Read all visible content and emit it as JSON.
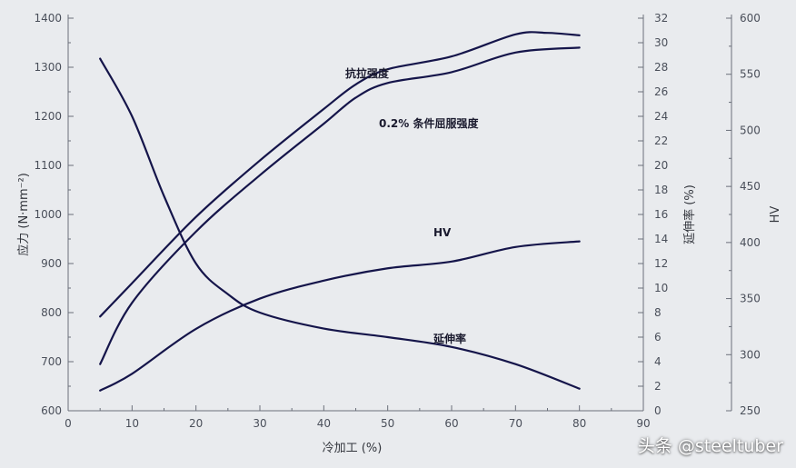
{
  "chart_data": {
    "type": "line",
    "xlabel": "冷加工 (%)",
    "ylabel_left": "应力 (N·mm⁻²)",
    "ylabel_right1": "延伸率 (%)",
    "ylabel_right2": "HV",
    "xlim": [
      0,
      90
    ],
    "x_ticks": [
      0,
      10,
      20,
      30,
      40,
      50,
      60,
      70,
      80,
      90
    ],
    "ylim_left": [
      600,
      1400
    ],
    "y_left_ticks": [
      600,
      700,
      800,
      900,
      1000,
      1100,
      1200,
      1300,
      1400
    ],
    "ylim_right1": [
      0,
      32
    ],
    "y_right1_ticks": [
      0,
      2,
      4,
      6,
      8,
      10,
      12,
      14,
      16,
      18,
      20,
      22,
      24,
      26,
      28,
      30,
      32
    ],
    "ylim_right2": [
      250,
      600
    ],
    "y_right2_ticks": [
      250,
      300,
      350,
      400,
      450,
      500,
      550,
      600
    ],
    "series": [
      {
        "name": "抗拉强度",
        "axis": "left",
        "x": [
          5,
          10,
          20,
          30,
          40,
          45,
          50,
          60,
          70,
          75,
          80
        ],
        "values": [
          792,
          860,
          995,
          1110,
          1215,
          1265,
          1296,
          1322,
          1367,
          1370,
          1365
        ]
      },
      {
        "name": "0.2% 条件屈服强度",
        "axis": "left",
        "x": [
          5,
          10,
          20,
          30,
          40,
          45,
          50,
          60,
          70,
          80
        ],
        "values": [
          695,
          820,
          965,
          1080,
          1185,
          1238,
          1268,
          1290,
          1330,
          1340
        ]
      },
      {
        "name": "HV",
        "axis": "right2",
        "x": [
          5,
          10,
          20,
          30,
          40,
          50,
          60,
          70,
          80
        ],
        "values": [
          268,
          283,
          323,
          350,
          366,
          377,
          383,
          396,
          401
        ]
      },
      {
        "name": "延伸率",
        "axis": "right1",
        "x": [
          5,
          10,
          15,
          20,
          25,
          30,
          40,
          50,
          60,
          70,
          80
        ],
        "values": [
          28.7,
          24.0,
          17.5,
          12.0,
          9.5,
          8.0,
          6.7,
          6.0,
          5.2,
          3.8,
          1.8
        ]
      }
    ],
    "annotations": [
      "抗拉强度",
      "0.2% 条件屈服强度",
      "HV",
      "延伸率"
    ]
  },
  "watermark": "头条 @steeltuber",
  "colors": {
    "line": "#15154a",
    "axis": "#6a6f7a",
    "background": "#e9ebee"
  }
}
